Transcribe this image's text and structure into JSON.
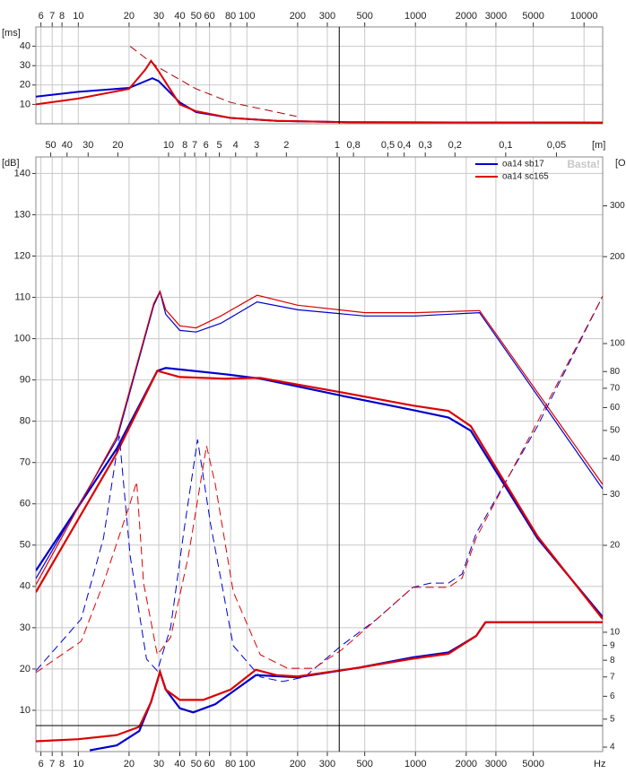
{
  "chart_data": [
    {
      "type": "line",
      "ylabel": "[ms]",
      "xscale": "log",
      "xlim": [
        5.6,
        12900
      ],
      "ylim": [
        0,
        50
      ],
      "xticks": [
        6,
        7,
        8,
        10,
        20,
        30,
        40,
        50,
        60,
        80,
        100,
        200,
        300,
        500,
        1000,
        2000,
        3000,
        5000,
        10000
      ],
      "yticks": [
        10,
        20,
        30,
        40
      ],
      "grid": true,
      "vline": 353,
      "series": [
        {
          "color": "#0000cc",
          "linewidth": 2,
          "x": [
            5.6,
            10,
            20,
            25,
            27.5,
            30,
            40,
            50,
            80,
            150,
            400,
            12900
          ],
          "values": [
            14,
            16.5,
            18.5,
            22,
            23.5,
            22,
            11,
            6,
            3,
            1.5,
            0.8,
            0.6
          ]
        },
        {
          "color": "#dd0000",
          "linewidth": 2,
          "x": [
            5.6,
            10,
            20,
            25,
            27,
            30,
            40,
            50,
            80,
            150,
            400,
            12900
          ],
          "values": [
            10,
            13,
            18,
            28,
            32.5,
            27,
            10,
            6.5,
            3,
            1.5,
            0.8,
            0.6
          ]
        },
        {
          "color": "#aa0000",
          "linewidth": 1,
          "dash": true,
          "x": [
            20.3,
            25,
            30,
            50,
            80,
            150,
            197
          ],
          "values": [
            40,
            34,
            29,
            18,
            11,
            6,
            3.8
          ]
        }
      ]
    },
    {
      "type": "line",
      "ylabel": "[dB]",
      "y2label": "[O",
      "xlabel": "Hz",
      "x2label": "[m]",
      "xscale": "log",
      "y2scale": "log",
      "xlim": [
        5.6,
        12900
      ],
      "ylim": [
        0,
        144
      ],
      "y2lim": [
        3.86,
        443
      ],
      "xticks": [
        6,
        7,
        8,
        10,
        20,
        30,
        40,
        50,
        60,
        80,
        100,
        200,
        300,
        500,
        1000,
        2000,
        3000,
        5000
      ],
      "yticks": [
        10,
        20,
        30,
        40,
        50,
        60,
        70,
        80,
        90,
        100,
        110,
        120,
        130,
        140
      ],
      "y2ticks": [
        4,
        5,
        6,
        7,
        8,
        9,
        10,
        20,
        30,
        40,
        50,
        60,
        70,
        80,
        100,
        200,
        300
      ],
      "x2ticks": [
        50,
        40,
        30,
        20,
        10,
        8,
        7,
        6,
        5,
        4,
        3,
        2,
        1,
        {
          "value": 0.8,
          "label": "0,8"
        },
        {
          "value": 0.5,
          "label": "0,5"
        },
        {
          "value": 0.4,
          "label": "0,4"
        },
        {
          "value": 0.3,
          "label": "0,3"
        },
        {
          "value": 0.2,
          "label": "0,2"
        },
        {
          "value": 0.1,
          "label": "0,1"
        },
        {
          "value": 0.05,
          "label": "0,05"
        }
      ],
      "grid": true,
      "vline": 353,
      "hline": 6.3,
      "watermark": "Basta!",
      "legend": "top-right",
      "series": [
        {
          "name": "oa14 sb17",
          "color": "#0000cc",
          "linewidth": 2.2,
          "x": [
            5.6,
            16.9,
            29.4,
            33,
            73.6,
            120,
            363,
            965,
            1570,
            2130,
            5300,
            12900
          ],
          "values": [
            43.8,
            73.4,
            92.2,
            92.9,
            91.4,
            90.3,
            86.2,
            82.7,
            80.9,
            77.7,
            51.6,
            32.6
          ]
        },
        {
          "name": "oa14 sc165",
          "color": "#dd0000",
          "linewidth": 2.2,
          "x": [
            5.6,
            16.9,
            29.4,
            40,
            73.6,
            120,
            363,
            965,
            1570,
            2130,
            5300,
            12900
          ],
          "values": [
            38.6,
            72.3,
            92.2,
            90.7,
            90.3,
            90.5,
            87.0,
            83.8,
            82.5,
            78.8,
            52.1,
            32.1
          ]
        },
        {
          "color": "#0000cc",
          "linewidth": 1.2,
          "x": [
            5.6,
            16.9,
            28,
            30.5,
            33,
            40,
            50,
            70,
            115,
            200,
            500,
            1000,
            2400,
            12900
          ],
          "values": [
            41.9,
            75.5,
            108,
            111.3,
            105.9,
            102,
            101.6,
            103.7,
            108.9,
            107,
            105.5,
            105.5,
            106.3,
            63.6
          ]
        },
        {
          "color": "#dd0000",
          "linewidth": 1.2,
          "x": [
            5.6,
            16.9,
            28,
            30.5,
            33,
            40,
            50,
            70,
            115,
            200,
            500,
            1000,
            2400,
            12900
          ],
          "values": [
            40.4,
            76.2,
            108.5,
            111.5,
            107,
            103.1,
            102.6,
            105.5,
            110.5,
            108.1,
            106.3,
            106.3,
            106.8,
            64.7
          ]
        },
        {
          "color": "#0000cc",
          "linewidth": 1,
          "dash": true,
          "axis": "y2",
          "x": [
            5.6,
            10.4,
            14.1,
            17.5,
            20.3,
            25.4,
            29.4,
            35.3,
            42.4,
            51,
            61,
            83,
            120,
            163,
            220,
            363,
            590,
            965,
            1230,
            1570,
            1890,
            2290,
            5300,
            12900
          ],
          "values": [
            7.35,
            11.1,
            21.2,
            48,
            18.4,
            8.07,
            7.35,
            10.4,
            22.7,
            46.5,
            23.6,
            8.98,
            7.0,
            6.75,
            7.0,
            8.98,
            11.1,
            14.3,
            14.8,
            14.8,
            15.9,
            22.0,
            51.8,
            146
          ]
        },
        {
          "color": "#dd0000",
          "linewidth": 1,
          "dash": true,
          "axis": "y2",
          "x": [
            5.6,
            10.4,
            14.1,
            20.3,
            22.2,
            24.4,
            29.4,
            35.3,
            45,
            57.6,
            65,
            83,
            120,
            174,
            250,
            363,
            590,
            965,
            1230,
            1570,
            1890,
            2290,
            5300,
            12900
          ],
          "values": [
            7.25,
            9.3,
            14.8,
            28,
            33.2,
            14.8,
            8.36,
            9.6,
            18.4,
            44.2,
            32.5,
            13.8,
            8.36,
            7.5,
            7.5,
            8.67,
            11.1,
            14.3,
            14.3,
            14.3,
            15.4,
            21.2,
            53.6,
            146
          ]
        },
        {
          "color": "#0000cc",
          "linewidth": 2.2,
          "x": [
            11.7,
            16.9,
            23,
            27,
            30.5,
            33,
            40,
            48,
            65,
            113,
            200,
            460,
            965,
            1570,
            2290,
            2600,
            12900
          ],
          "values": [
            0.3,
            1.5,
            5,
            12,
            19.3,
            15,
            10.5,
            9.5,
            11.5,
            18.5,
            18.0,
            20.3,
            22.8,
            24.0,
            28,
            31.3,
            31.3
          ]
        },
        {
          "color": "#dd0000",
          "linewidth": 2.2,
          "x": [
            5.6,
            10,
            16.9,
            23,
            27,
            30.5,
            33,
            40,
            55,
            80,
            113,
            150,
            200,
            460,
            965,
            1570,
            2290,
            2600,
            12900
          ],
          "values": [
            2.5,
            3.0,
            4.0,
            6,
            12,
            19.3,
            15,
            12.5,
            12.5,
            15,
            19.8,
            18.5,
            18.2,
            20.3,
            22.5,
            23.7,
            28,
            31.3,
            31.3
          ]
        }
      ]
    }
  ]
}
